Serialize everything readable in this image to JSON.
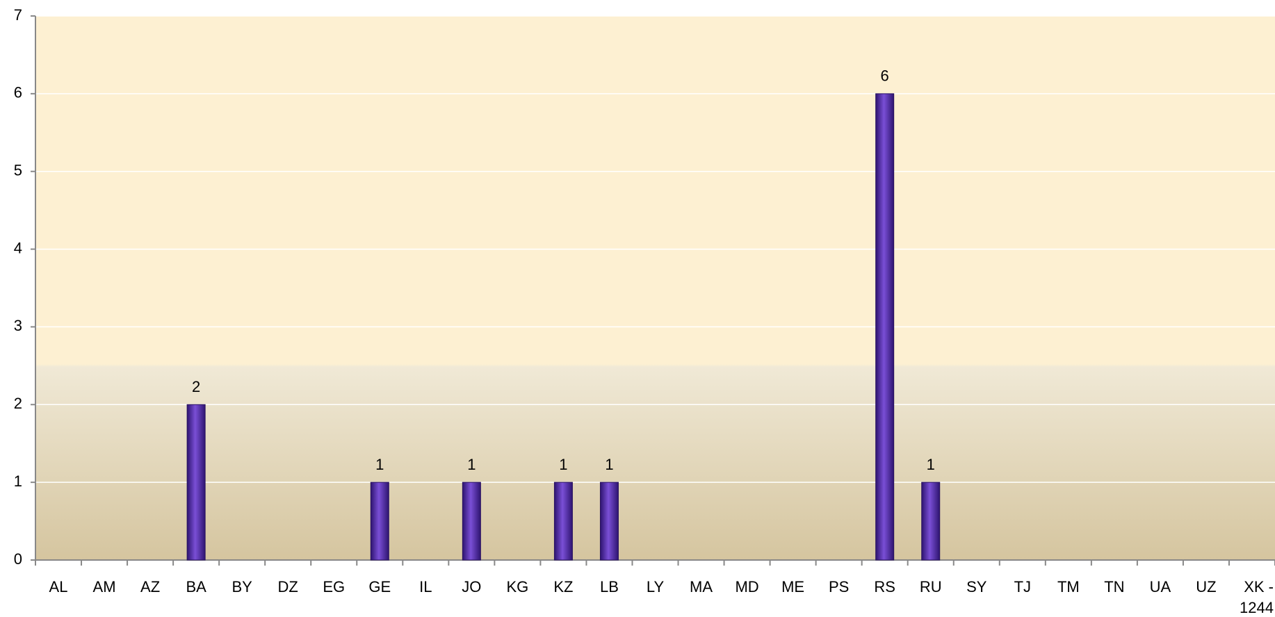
{
  "chart_data": {
    "type": "bar",
    "categories": [
      "AL",
      "AM",
      "AZ",
      "BA",
      "BY",
      "DZ",
      "EG",
      "GE",
      "IL",
      "JO",
      "KG",
      "KZ",
      "LB",
      "LY",
      "MA",
      "MD",
      "ME",
      "PS",
      "RS",
      "RU",
      "SY",
      "TJ",
      "TM",
      "TN",
      "UA",
      "UZ",
      "XK - 1244"
    ],
    "values": [
      0,
      0,
      0,
      2,
      0,
      0,
      0,
      1,
      0,
      1,
      0,
      1,
      1,
      0,
      0,
      0,
      0,
      0,
      6,
      1,
      0,
      0,
      0,
      0,
      0,
      0,
      0
    ],
    "color": "#5a2fb0",
    "ylim": [
      0,
      7
    ],
    "yticks": [
      0,
      1,
      2,
      3,
      4,
      5,
      6,
      7
    ],
    "grid": true
  }
}
